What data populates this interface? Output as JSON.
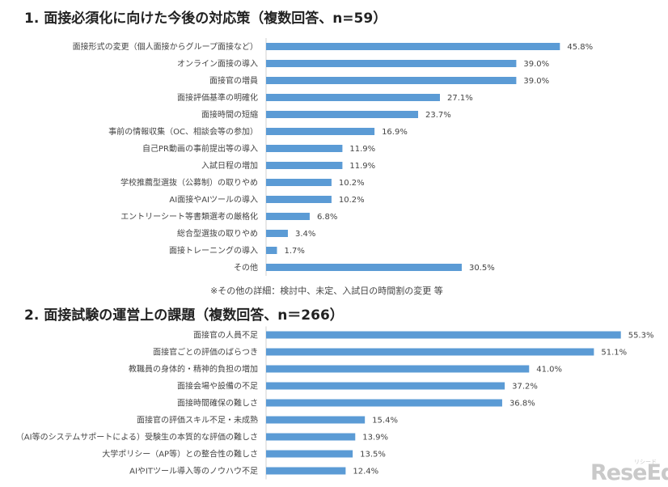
{
  "chart_data": [
    {
      "type": "bar",
      "orientation": "horizontal",
      "title": "1. 面接必須化に向けた今後の対応策（複数回答、n=59）",
      "categories": [
        "面接形式の変更（個人面接からグループ面接など）",
        "オンライン面接の導入",
        "面接官の増員",
        "面接評価基準の明確化",
        "面接時間の短縮",
        "事前の情報収集（OC、相談会等の参加）",
        "自己PR動画の事前提出等の導入",
        "入試日程の増加",
        "学校推薦型選抜（公募制）の取りやめ",
        "AI面接やAIツールの導入",
        "エントリーシート等書類選考の厳格化",
        "総合型選抜の取りやめ",
        "面接トレーニングの導入",
        "その他"
      ],
      "values": [
        45.8,
        39.0,
        39.0,
        27.1,
        23.7,
        16.9,
        11.9,
        11.9,
        10.2,
        10.2,
        6.8,
        3.4,
        1.7,
        30.5
      ],
      "value_labels": [
        "45.8%",
        "39.0%",
        "39.0%",
        "27.1%",
        "23.7%",
        "16.9%",
        "11.9%",
        "11.9%",
        "10.2%",
        "10.2%",
        "6.8%",
        "3.4%",
        "1.7%",
        "30.5%"
      ],
      "xlim": [
        0,
        60
      ],
      "bar_color": "#5b9bd5",
      "footnote": "※その他の詳細：検討中、未定、入試日の時間割の変更 等"
    },
    {
      "type": "bar",
      "orientation": "horizontal",
      "title": "2. 面接試験の運営上の課題（複数回答、n＝266）",
      "categories": [
        "面接官の人員不足",
        "面接官ごとの評価のばらつき",
        "教職員の身体的・精神的負担の増加",
        "面接会場や設備の不足",
        "面接時間確保の難しさ",
        "面接官の評価スキル不足・未成熟",
        "（AI等のシステムサポートによる）受験生の本質的な評価の難しさ",
        "大学ポリシー（AP等）との整合性の難しさ",
        "AIやITツール導入等のノウハウ不足"
      ],
      "values": [
        55.3,
        51.1,
        41.0,
        37.2,
        36.8,
        15.4,
        13.9,
        13.5,
        12.4
      ],
      "value_labels": [
        "55.3%",
        "51.1%",
        "41.0%",
        "37.2%",
        "36.8%",
        "15.4%",
        "13.9%",
        "13.5%",
        "12.4%"
      ],
      "xlim": [
        0,
        60
      ],
      "bar_color": "#5b9bd5"
    }
  ],
  "logo": {
    "text": "ReseEd",
    "sub": "リシード"
  }
}
